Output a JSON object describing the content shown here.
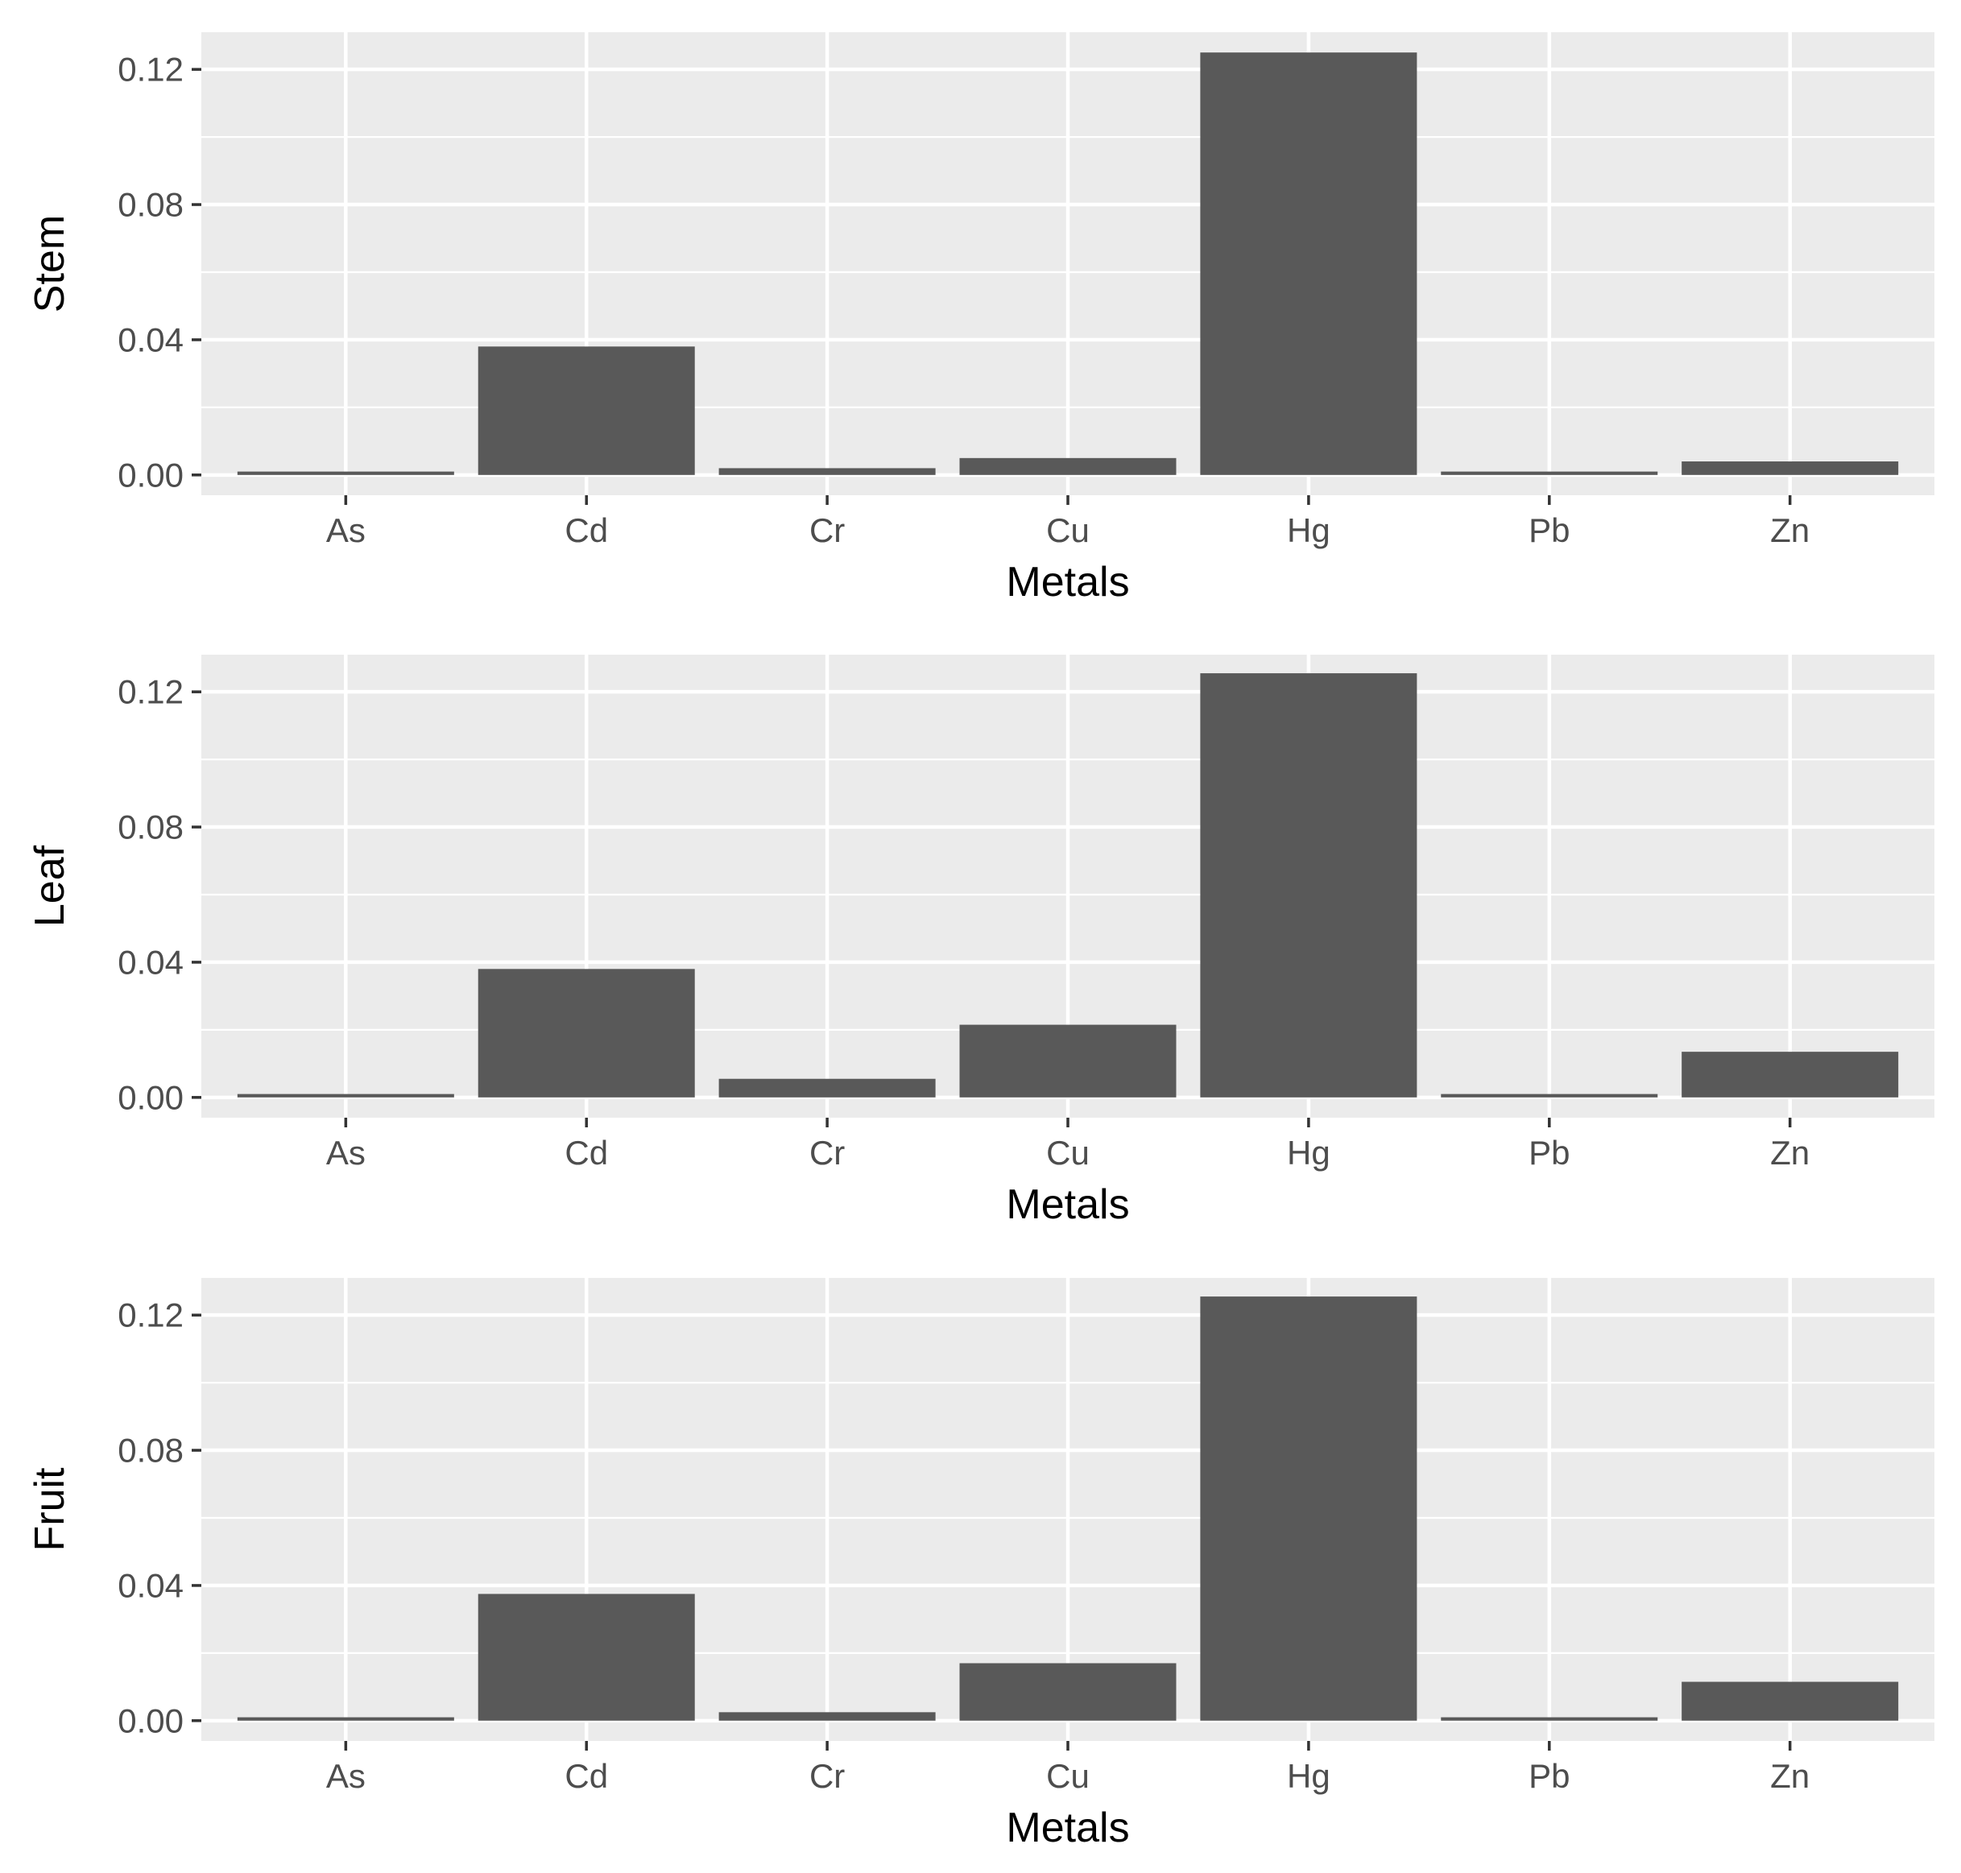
{
  "chart_data": [
    {
      "type": "bar",
      "categories": [
        "As",
        "Cd",
        "Cr",
        "Cu",
        "Hg",
        "Pb",
        "Zn"
      ],
      "values": [
        0.001,
        0.038,
        0.002,
        0.005,
        0.125,
        0.001,
        0.004
      ],
      "xlabel": "Metals",
      "ylabel": "Stem",
      "ylim": [
        -0.006,
        0.131
      ],
      "yticks": [
        0.0,
        0.04,
        0.08,
        0.12
      ],
      "ytick_labels": [
        "0.00",
        "0.04",
        "0.08",
        "0.12"
      ],
      "grid": true
    },
    {
      "type": "bar",
      "categories": [
        "As",
        "Cd",
        "Cr",
        "Cu",
        "Hg",
        "Pb",
        "Zn"
      ],
      "values": [
        0.001,
        0.038,
        0.0055,
        0.0215,
        0.1255,
        0.001,
        0.0135
      ],
      "xlabel": "Metals",
      "ylabel": "Leaf",
      "ylim": [
        -0.006,
        0.131
      ],
      "yticks": [
        0.0,
        0.04,
        0.08,
        0.12
      ],
      "ytick_labels": [
        "0.00",
        "0.04",
        "0.08",
        "0.12"
      ],
      "grid": true
    },
    {
      "type": "bar",
      "categories": [
        "As",
        "Cd",
        "Cr",
        "Cu",
        "Hg",
        "Pb",
        "Zn"
      ],
      "values": [
        0.001,
        0.0375,
        0.0025,
        0.017,
        0.1255,
        0.001,
        0.0115
      ],
      "xlabel": "Metals",
      "ylabel": "Fruit",
      "ylim": [
        -0.006,
        0.131
      ],
      "yticks": [
        0.0,
        0.04,
        0.08,
        0.12
      ],
      "ytick_labels": [
        "0.00",
        "0.04",
        "0.08",
        "0.12"
      ],
      "grid": true
    }
  ]
}
